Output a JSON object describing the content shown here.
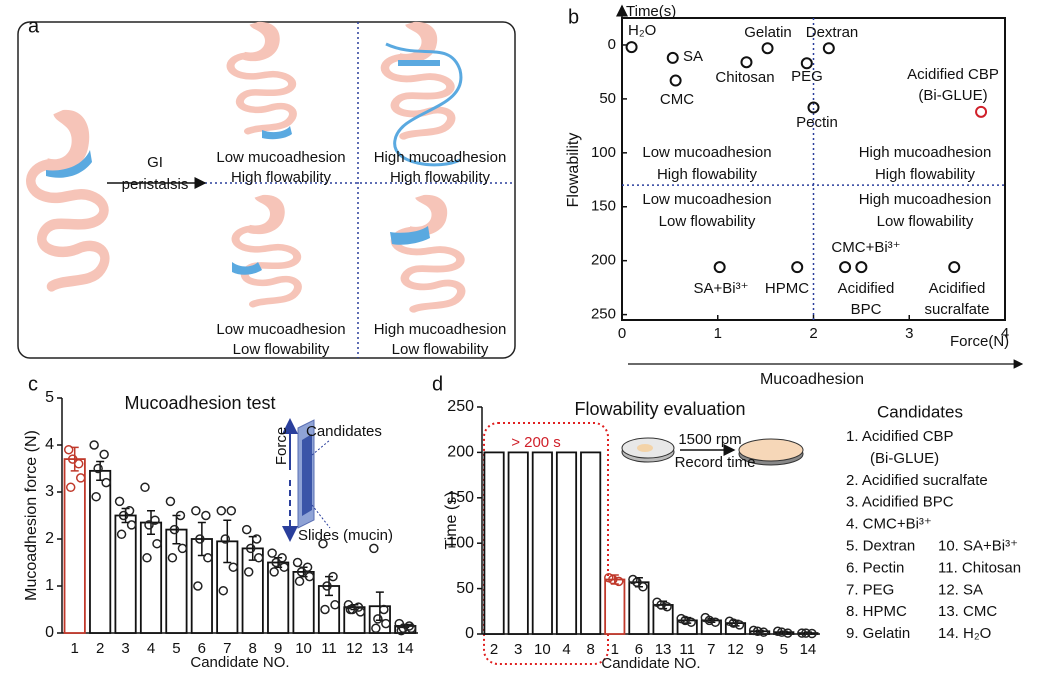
{
  "panel_a": {
    "letter": "a",
    "arrow_label": [
      "GI",
      "peristalsis"
    ],
    "quadrants": [
      [
        "Low mucoadhesion",
        "High flowability"
      ],
      [
        "High mucoadhesion",
        "High flowability"
      ],
      [
        "Low mucoadhesion",
        "Low flowability"
      ],
      [
        "High mucoadhesion",
        "Low flowability"
      ]
    ]
  },
  "chart_data": [
    {
      "letter": "b",
      "type": "scatter",
      "xlabel": "Force(N)",
      "ylabel": "Time(s)",
      "x_direction_label": "Mucoadhesion",
      "y_direction_label": "Flowability",
      "xlim": [
        0,
        4
      ],
      "ylim": [
        -25,
        255
      ],
      "y_inverted": true,
      "xticks": [
        0,
        1,
        2,
        3,
        4
      ],
      "yticks": [
        0,
        50,
        100,
        150,
        200,
        250
      ],
      "dividers": {
        "x": 2,
        "y": 130
      },
      "quadrant_labels": [
        [
          "Low mucoadhesion",
          "High flowability"
        ],
        [
          "High mucoadhesion",
          "High flowability"
        ],
        [
          "Low mucoadhesion",
          "Low flowability"
        ],
        [
          "High mucoadhesion",
          "Low flowability"
        ]
      ],
      "points": {
        "labels": [
          [
            "H₂O"
          ],
          [
            "SA"
          ],
          [
            "CMC"
          ],
          [
            "Chitosan"
          ],
          [
            "Gelatin"
          ],
          [
            "PEG"
          ],
          [
            "Dextran"
          ],
          [
            "Pectin"
          ],
          [
            "Acidified CBP",
            "(Bi-GLUE)"
          ],
          [
            "SA+Bi³⁺"
          ],
          [
            "HPMC"
          ],
          [
            "CMC+Bi³⁺"
          ],
          [
            "Acidified",
            "BPC"
          ],
          [
            "Acidified",
            "sucralfate"
          ]
        ],
        "x": [
          0.1,
          0.53,
          0.56,
          1.3,
          1.52,
          1.93,
          2.16,
          2.0,
          3.75,
          1.02,
          1.83,
          2.33,
          2.5,
          3.47
        ],
        "y": [
          2,
          12,
          33,
          16,
          3,
          17,
          3,
          58,
          62,
          206,
          206,
          206,
          206,
          206
        ],
        "colors": [
          "#2a2a9c",
          "#2a2a9c",
          "#2a2a9c",
          "#2a2a9c",
          "#2a2a9c",
          "#2a2a9c",
          "#2a2a9c",
          "#2a2a9c",
          "#d0202a",
          "#2a2a9c",
          "#2a2a9c",
          "#2a2a9c",
          "#2a2a9c",
          "#2a2a9c"
        ]
      }
    },
    {
      "letter": "c",
      "type": "bar",
      "title": "Mucoadhesion test",
      "xlabel": "Candidate NO.",
      "ylabel": "Mucoadhesion force (N)",
      "ylim": [
        0,
        5
      ],
      "yticks": [
        0,
        1,
        2,
        3,
        4,
        5
      ],
      "categories": [
        "1",
        "2",
        "3",
        "4",
        "5",
        "6",
        "7",
        "8",
        "9",
        "10",
        "11",
        "12",
        "13",
        "14"
      ],
      "values": [
        3.7,
        3.45,
        2.5,
        2.35,
        2.2,
        2.0,
        1.95,
        1.8,
        1.5,
        1.3,
        1.0,
        0.55,
        0.57,
        0.15
      ],
      "errors": [
        0.25,
        0.2,
        0.15,
        0.25,
        0.3,
        0.35,
        0.45,
        0.25,
        0.1,
        0.1,
        0.2,
        0.05,
        0.3,
        0.03
      ],
      "points": [
        [
          3.9,
          3.6,
          3.7,
          3.3,
          3.1
        ],
        [
          4.0,
          3.8,
          3.5,
          3.2,
          2.9
        ],
        [
          2.8,
          2.6,
          2.5,
          2.3,
          2.1
        ],
        [
          3.1,
          2.4,
          2.3,
          1.9,
          1.6
        ],
        [
          2.8,
          2.5,
          2.2,
          1.8,
          1.6
        ],
        [
          2.6,
          2.5,
          2.0,
          1.6,
          1.0
        ],
        [
          2.6,
          2.6,
          2.0,
          1.4,
          0.9
        ],
        [
          2.2,
          2.0,
          1.8,
          1.6,
          1.3
        ],
        [
          1.7,
          1.6,
          1.5,
          1.4,
          1.3
        ],
        [
          1.5,
          1.4,
          1.3,
          1.2,
          1.1
        ],
        [
          1.9,
          1.2,
          1.0,
          0.6,
          0.5
        ],
        [
          0.6,
          0.55,
          0.5,
          0.45,
          0.5
        ],
        [
          1.8,
          0.5,
          0.3,
          0.2,
          0.1
        ],
        [
          0.2,
          0.15,
          0.1,
          0.1,
          0.05
        ]
      ],
      "colors": [
        "#c0392b",
        "#111111",
        "#111111",
        "#111111",
        "#111111",
        "#111111",
        "#111111",
        "#111111",
        "#111111",
        "#111111",
        "#111111",
        "#111111",
        "#111111",
        "#111111"
      ],
      "inset_labels": {
        "force": "Force",
        "candidates": "Candidates",
        "slides": "Slides (mucin)"
      }
    },
    {
      "letter": "d",
      "type": "bar",
      "title": "Flowability evaluation",
      "xlabel": "Candidate NO.",
      "ylabel": "Time (s)",
      "ylim": [
        0,
        250
      ],
      "yticks": [
        0,
        50,
        100,
        150,
        200,
        250
      ],
      "categories": [
        "2",
        "3",
        "10",
        "4",
        "8",
        "1",
        "6",
        "13",
        "11",
        "7",
        "12",
        "9",
        "5",
        "14"
      ],
      "values": [
        200,
        200,
        200,
        200,
        200,
        60,
        57,
        32,
        15,
        15,
        12,
        3,
        2,
        1
      ],
      "errors": [
        null,
        null,
        null,
        null,
        null,
        5,
        5,
        4,
        3,
        2,
        3,
        1,
        1,
        1
      ],
      "points": [
        null,
        null,
        null,
        null,
        null,
        [
          62,
          58,
          60
        ],
        [
          60,
          52,
          57
        ],
        [
          35,
          30,
          32
        ],
        [
          17,
          13,
          15
        ],
        [
          18,
          13,
          15
        ],
        [
          14,
          10,
          12
        ],
        [
          4,
          2,
          3
        ],
        [
          3,
          1,
          2
        ],
        [
          1,
          0.5,
          1
        ]
      ],
      "colors": [
        "#111111",
        "#111111",
        "#111111",
        "#111111",
        "#111111",
        "#c0392b",
        "#111111",
        "#111111",
        "#111111",
        "#111111",
        "#111111",
        "#111111",
        "#111111",
        "#111111"
      ],
      "annotation": "> 200 s",
      "process_labels": [
        "1500 rpm",
        "Record time"
      ],
      "legend": {
        "title": "Candidates",
        "items": [
          "1. Acidified CBP",
          "(Bi-GLUE)",
          "2. Acidified sucralfate",
          "3. Acidified BPC",
          "4. CMC+Bi³⁺",
          "5. Dextran",
          "6. Pectin",
          "7. PEG",
          "8. HPMC",
          "9. Gelatin"
        ],
        "items_right": [
          "10. SA+Bi³⁺",
          "11. Chitosan",
          "12. SA",
          "13. CMC",
          "14. H₂O"
        ]
      }
    }
  ]
}
